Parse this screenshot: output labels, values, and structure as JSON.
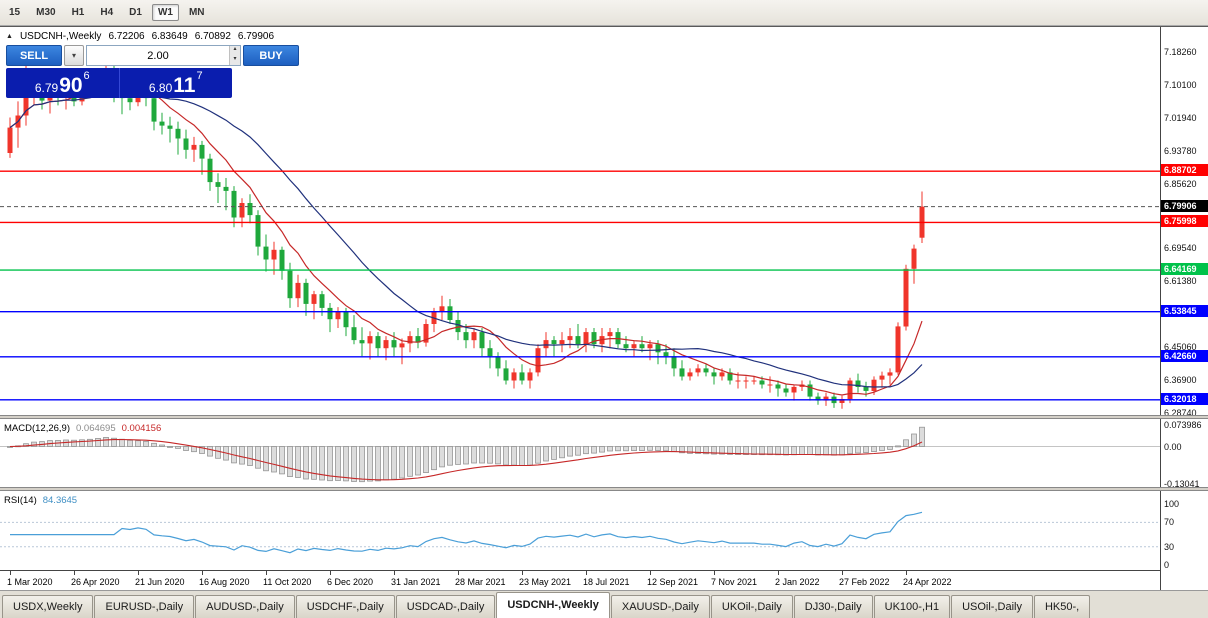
{
  "toolbar": {
    "timeframes": [
      {
        "label": "15",
        "active": false
      },
      {
        "label": "M30",
        "active": false
      },
      {
        "label": "H1",
        "active": false
      },
      {
        "label": "H4",
        "active": false
      },
      {
        "label": "D1",
        "active": false
      },
      {
        "label": "W1",
        "active": true
      },
      {
        "label": "MN",
        "active": false
      }
    ]
  },
  "chart": {
    "header": {
      "symbol": "USDCNH-,Weekly",
      "open": "6.72206",
      "high": "6.83649",
      "low": "6.70892",
      "close": "6.79906"
    }
  },
  "trade_panel": {
    "sell_label": "SELL",
    "buy_label": "BUY",
    "volume": "2.00",
    "sell_price": {
      "prefix": "6.79",
      "big": "90",
      "sup": "6"
    },
    "buy_price": {
      "prefix": "6.80",
      "big": "11",
      "sup": "7"
    }
  },
  "price_axis": {
    "labels": [
      {
        "text": "7.18260",
        "price": 7.1826
      },
      {
        "text": "7.10100",
        "price": 7.101
      },
      {
        "text": "7.01940",
        "price": 7.0194
      },
      {
        "text": "6.93780",
        "price": 6.9378
      },
      {
        "text": "6.85620",
        "price": 6.8562
      },
      {
        "text": "6.69540",
        "price": 6.6954
      },
      {
        "text": "6.61380",
        "price": 6.6138
      },
      {
        "text": "6.45060",
        "price": 6.4506
      },
      {
        "text": "6.36900",
        "price": 6.369
      },
      {
        "text": "6.28740",
        "price": 6.2874
      }
    ]
  },
  "chart_data": {
    "type": "candlestick",
    "symbol": "USDCNH-",
    "period": "Weekly",
    "ylim": [
      6.2824,
      7.2147
    ],
    "x_label_every": 8,
    "x_labels": [
      "1 Mar 2020",
      "26 Apr 2020",
      "21 Jun 2020",
      "16 Aug 2020",
      "11 Oct 2020",
      "6 Dec 2020",
      "31 Jan 2021",
      "28 Mar 2021",
      "23 May 2021",
      "18 Jul 2021",
      "12 Sep 2021",
      "7 Nov 2021",
      "2 Jan 2022",
      "27 Feb 2022",
      "24 Apr 2022"
    ],
    "colors": {
      "bull": "#f0352b",
      "bear": "#1fa83c",
      "ma_fast": "#c62828",
      "ma_slow": "#20317c",
      "hist_fill": "#dcdcdc",
      "hist_stroke": "#909090",
      "signal": "#c62828",
      "rsi": "#4a9fd8",
      "current_line": "#555555"
    },
    "candles": [
      [
        6.932,
        7.02,
        6.92,
        6.995
      ],
      [
        6.995,
        7.06,
        6.945,
        7.025
      ],
      [
        7.025,
        7.165,
        7.0,
        7.09
      ],
      [
        7.09,
        7.14,
        7.05,
        7.095
      ],
      [
        7.095,
        7.125,
        7.04,
        7.062
      ],
      [
        7.062,
        7.1,
        7.03,
        7.088
      ],
      [
        7.088,
        7.105,
        7.05,
        7.07
      ],
      [
        7.07,
        7.095,
        7.04,
        7.082
      ],
      [
        7.082,
        7.1,
        7.048,
        7.06
      ],
      [
        7.06,
        7.1,
        7.05,
        7.092
      ],
      [
        7.092,
        7.12,
        7.068,
        7.1
      ],
      [
        7.1,
        7.14,
        7.08,
        7.128
      ],
      [
        7.128,
        7.165,
        7.1,
        7.142
      ],
      [
        7.142,
        7.152,
        7.058,
        7.078
      ],
      [
        7.078,
        7.1,
        7.028,
        7.068
      ],
      [
        7.068,
        7.09,
        7.038,
        7.058
      ],
      [
        7.058,
        7.098,
        7.048,
        7.08
      ],
      [
        7.08,
        7.092,
        7.048,
        7.068
      ],
      [
        7.068,
        7.08,
        6.988,
        7.01
      ],
      [
        7.01,
        7.032,
        6.978,
        7.0
      ],
      [
        7.0,
        7.022,
        6.958,
        6.992
      ],
      [
        6.992,
        7.01,
        6.928,
        6.968
      ],
      [
        6.968,
        6.99,
        6.918,
        6.94
      ],
      [
        6.94,
        6.972,
        6.91,
        6.952
      ],
      [
        6.952,
        6.962,
        6.878,
        6.918
      ],
      [
        6.918,
        6.93,
        6.838,
        6.86
      ],
      [
        6.86,
        6.882,
        6.808,
        6.848
      ],
      [
        6.848,
        6.87,
        6.79,
        6.838
      ],
      [
        6.838,
        6.85,
        6.748,
        6.772
      ],
      [
        6.772,
        6.82,
        6.748,
        6.808
      ],
      [
        6.808,
        6.83,
        6.758,
        6.778
      ],
      [
        6.778,
        6.79,
        6.678,
        6.7
      ],
      [
        6.7,
        6.73,
        6.638,
        6.668
      ],
      [
        6.668,
        6.712,
        6.63,
        6.692
      ],
      [
        6.692,
        6.7,
        6.618,
        6.64
      ],
      [
        6.64,
        6.66,
        6.548,
        6.572
      ],
      [
        6.572,
        6.63,
        6.55,
        6.61
      ],
      [
        6.61,
        6.62,
        6.528,
        6.558
      ],
      [
        6.558,
        6.59,
        6.52,
        6.582
      ],
      [
        6.582,
        6.59,
        6.528,
        6.548
      ],
      [
        6.548,
        6.56,
        6.488,
        6.52
      ],
      [
        6.52,
        6.55,
        6.498,
        6.538
      ],
      [
        6.538,
        6.548,
        6.478,
        6.5
      ],
      [
        6.5,
        6.53,
        6.458,
        6.468
      ],
      [
        6.468,
        6.5,
        6.428,
        6.46
      ],
      [
        6.46,
        6.49,
        6.42,
        6.478
      ],
      [
        6.478,
        6.488,
        6.428,
        6.448
      ],
      [
        6.448,
        6.478,
        6.418,
        6.468
      ],
      [
        6.468,
        6.488,
        6.428,
        6.45
      ],
      [
        6.45,
        6.472,
        6.408,
        6.46
      ],
      [
        6.46,
        6.49,
        6.438,
        6.478
      ],
      [
        6.478,
        6.498,
        6.448,
        6.462
      ],
      [
        6.462,
        6.52,
        6.452,
        6.508
      ],
      [
        6.508,
        6.548,
        6.488,
        6.538
      ],
      [
        6.538,
        6.578,
        6.518,
        6.552
      ],
      [
        6.552,
        6.57,
        6.508,
        6.518
      ],
      [
        6.518,
        6.54,
        6.468,
        6.488
      ],
      [
        6.488,
        6.508,
        6.448,
        6.468
      ],
      [
        6.468,
        6.498,
        6.448,
        6.488
      ],
      [
        6.488,
        6.498,
        6.428,
        6.448
      ],
      [
        6.448,
        6.468,
        6.398,
        6.428
      ],
      [
        6.428,
        6.438,
        6.378,
        6.398
      ],
      [
        6.398,
        6.418,
        6.358,
        6.368
      ],
      [
        6.368,
        6.398,
        6.348,
        6.388
      ],
      [
        6.388,
        6.408,
        6.358,
        6.368
      ],
      [
        6.368,
        6.398,
        6.348,
        6.388
      ],
      [
        6.388,
        6.458,
        6.378,
        6.448
      ],
      [
        6.448,
        6.488,
        6.428,
        6.468
      ],
      [
        6.468,
        6.478,
        6.428,
        6.458
      ],
      [
        6.458,
        6.488,
        6.438,
        6.468
      ],
      [
        6.468,
        6.498,
        6.448,
        6.478
      ],
      [
        6.478,
        6.508,
        6.448,
        6.458
      ],
      [
        6.458,
        6.498,
        6.438,
        6.488
      ],
      [
        6.488,
        6.498,
        6.448,
        6.458
      ],
      [
        6.458,
        6.498,
        6.438,
        6.478
      ],
      [
        6.478,
        6.498,
        6.448,
        6.488
      ],
      [
        6.488,
        6.498,
        6.448,
        6.458
      ],
      [
        6.458,
        6.478,
        6.438,
        6.448
      ],
      [
        6.448,
        6.468,
        6.428,
        6.458
      ],
      [
        6.458,
        6.478,
        6.438,
        6.448
      ],
      [
        6.448,
        6.468,
        6.418,
        6.458
      ],
      [
        6.458,
        6.468,
        6.408,
        6.438
      ],
      [
        6.438,
        6.458,
        6.408,
        6.428
      ],
      [
        6.428,
        6.448,
        6.378,
        6.398
      ],
      [
        6.398,
        6.418,
        6.368,
        6.378
      ],
      [
        6.378,
        6.398,
        6.368,
        6.388
      ],
      [
        6.388,
        6.408,
        6.378,
        6.398
      ],
      [
        6.398,
        6.408,
        6.378,
        6.388
      ],
      [
        6.388,
        6.398,
        6.358,
        6.378
      ],
      [
        6.378,
        6.398,
        6.368,
        6.388
      ],
      [
        6.388,
        6.398,
        6.358,
        6.368
      ],
      [
        6.368,
        6.388,
        6.348,
        6.368
      ],
      [
        6.368,
        6.378,
        6.348,
        6.368
      ],
      [
        6.368,
        6.378,
        6.358,
        6.368
      ],
      [
        6.368,
        6.378,
        6.348,
        6.358
      ],
      [
        6.358,
        6.378,
        6.338,
        6.358
      ],
      [
        6.358,
        6.368,
        6.328,
        6.348
      ],
      [
        6.348,
        6.358,
        6.328,
        6.338
      ],
      [
        6.338,
        6.358,
        6.318,
        6.352
      ],
      [
        6.352,
        6.368,
        6.342,
        6.358
      ],
      [
        6.358,
        6.368,
        6.318,
        6.328
      ],
      [
        6.328,
        6.338,
        6.308,
        6.318
      ],
      [
        6.318,
        6.338,
        6.305,
        6.328
      ],
      [
        6.328,
        6.338,
        6.3,
        6.312
      ],
      [
        6.312,
        6.33,
        6.298,
        6.322
      ],
      [
        6.322,
        6.375,
        6.312,
        6.368
      ],
      [
        6.368,
        6.385,
        6.338,
        6.352
      ],
      [
        6.352,
        6.365,
        6.328,
        6.342
      ],
      [
        6.342,
        6.378,
        6.332,
        6.37
      ],
      [
        6.37,
        6.39,
        6.35,
        6.38
      ],
      [
        6.38,
        6.398,
        6.358,
        6.388
      ],
      [
        6.388,
        6.512,
        6.382,
        6.502
      ],
      [
        6.502,
        6.655,
        6.492,
        6.645
      ],
      [
        6.645,
        6.705,
        6.608,
        6.695
      ],
      [
        6.72206,
        6.83649,
        6.70892,
        6.79906
      ]
    ],
    "overlays": [
      {
        "name": "sma-fast",
        "period": 8
      },
      {
        "name": "sma-slow",
        "period": 21
      }
    ],
    "hlines": [
      {
        "price": 6.88702,
        "label": "6.88702",
        "color": "#ff0000"
      },
      {
        "price": 6.75998,
        "label": "6.75998",
        "color": "#ff0000"
      },
      {
        "price": 6.64169,
        "label": "6.64169",
        "color": "#00c24a"
      },
      {
        "price": 6.53845,
        "label": "6.53845",
        "color": "#0000ff"
      },
      {
        "price": 6.4266,
        "label": "6.42660",
        "color": "#0000ff"
      },
      {
        "price": 6.32018,
        "label": "6.32018",
        "color": "#0000ff"
      }
    ],
    "current_price": {
      "value": 6.79906,
      "label": "6.79906",
      "color": "#000000"
    },
    "indicators": [
      {
        "name": "MACD",
        "title": "MACD(12,26,9)",
        "params": [
          12,
          26,
          9
        ],
        "main_value": "0.064695",
        "signal_value": "0.004156",
        "ylim": [
          -0.14,
          0.088
        ],
        "axis_labels": [
          {
            "value": 0.073986,
            "text": "0.073986"
          },
          {
            "value": 0,
            "text": "0.00"
          },
          {
            "value": -0.13041,
            "text": "-0.13041"
          }
        ]
      },
      {
        "name": "RSI",
        "title": "RSI(14)",
        "period": 14,
        "value": "84.3645",
        "ylim": [
          -3,
          118
        ],
        "levels": [
          70,
          30
        ],
        "axis_labels": [
          {
            "value": 100,
            "text": "100"
          },
          {
            "value": 70,
            "text": "70"
          },
          {
            "value": 30,
            "text": "30"
          },
          {
            "value": 0,
            "text": "0"
          }
        ]
      }
    ]
  },
  "tabs": [
    {
      "label": "USDX,Weekly",
      "active": false
    },
    {
      "label": "EURUSD-,Daily",
      "active": false
    },
    {
      "label": "AUDUSD-,Daily",
      "active": false
    },
    {
      "label": "USDCHF-,Daily",
      "active": false
    },
    {
      "label": "USDCAD-,Daily",
      "active": false
    },
    {
      "label": "USDCNH-,Weekly",
      "active": true
    },
    {
      "label": "XAUUSD-,Daily",
      "active": false
    },
    {
      "label": "UKOil-,Daily",
      "active": false
    },
    {
      "label": "DJ30-,Daily",
      "active": false
    },
    {
      "label": "UK100-,H1",
      "active": false
    },
    {
      "label": "USOil-,Daily",
      "active": false
    },
    {
      "label": "HK50-,",
      "active": false
    }
  ]
}
